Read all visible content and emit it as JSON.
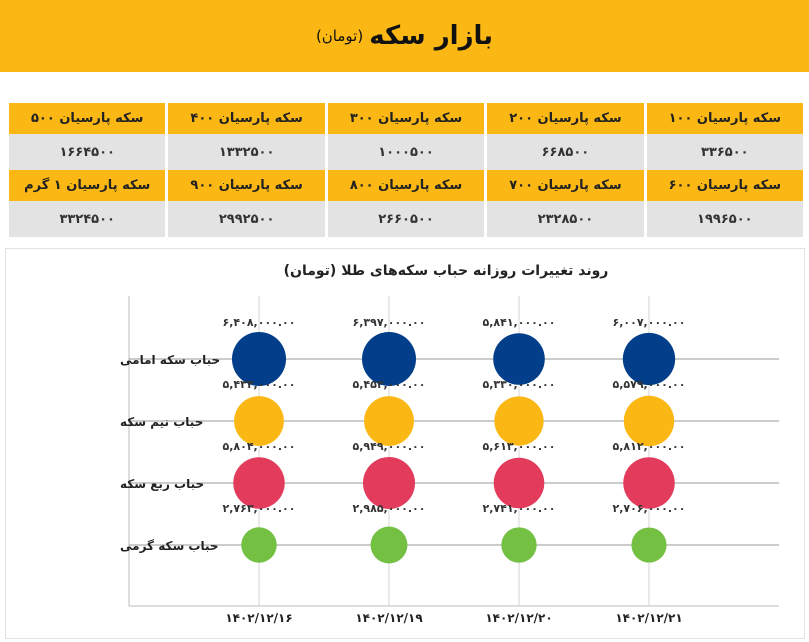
{
  "header": {
    "title": "بازار سکه",
    "unit": "(تومان)"
  },
  "table": {
    "rows": [
      [
        {
          "name": "سکه پارسیان ۱۰۰",
          "price": "۳۳۶۵۰۰"
        },
        {
          "name": "سکه پارسیان ۲۰۰",
          "price": "۶۶۸۵۰۰"
        },
        {
          "name": "سکه پارسیان ۳۰۰",
          "price": "۱۰۰۰۵۰۰"
        },
        {
          "name": "سکه پارسیان ۴۰۰",
          "price": "۱۳۳۲۵۰۰"
        },
        {
          "name": "سکه پارسیان ۵۰۰",
          "price": "۱۶۶۴۵۰۰"
        }
      ],
      [
        {
          "name": "سکه پارسیان ۶۰۰",
          "price": "۱۹۹۶۵۰۰"
        },
        {
          "name": "سکه پارسیان ۷۰۰",
          "price": "۲۳۲۸۵۰۰"
        },
        {
          "name": "سکه پارسیان ۸۰۰",
          "price": "۲۶۶۰۵۰۰"
        },
        {
          "name": "سکه پارسیان ۹۰۰",
          "price": "۲۹۹۲۵۰۰"
        },
        {
          "name": "سکه پارسیان ۱ گرم",
          "price": "۳۳۲۴۵۰۰"
        }
      ]
    ]
  },
  "chart_data": {
    "type": "bubble",
    "title": "روند تغییرات روزانه حباب سکه‌های طلا (تومان)",
    "categories": [
      "۱۴۰۲/۱۲/۱۶",
      "۱۴۰۲/۱۲/۱۹",
      "۱۴۰۲/۱۲/۲۰",
      "۱۴۰۲/۱۲/۲۱"
    ],
    "series": [
      {
        "name": "حباب سکه امامی",
        "color": "#023e8a",
        "values": [
          6408000,
          6397000,
          5841000,
          6007000
        ],
        "value_labels": [
          "۶,۴۰۸,۰۰۰.۰۰",
          "۶,۳۹۷,۰۰۰.۰۰",
          "۵,۸۴۱,۰۰۰.۰۰",
          "۶,۰۰۷,۰۰۰.۰۰"
        ]
      },
      {
        "name": "حباب نیم سکه",
        "color": "#fbb713",
        "values": [
          5433000,
          5453000,
          5330000,
          5579000
        ],
        "value_labels": [
          "۵,۴۳۳,۰۰۰.۰۰",
          "۵,۴۵۳,۰۰۰.۰۰",
          "۵,۳۳۰,۰۰۰.۰۰",
          "۵,۵۷۹,۰۰۰.۰۰"
        ]
      },
      {
        "name": "حباب ربع سکه",
        "color": "#e23b5c",
        "values": [
          5804000,
          5949000,
          5613000,
          5812000
        ],
        "value_labels": [
          "۵,۸۰۴,۰۰۰.۰۰",
          "۵,۹۴۹,۰۰۰.۰۰",
          "۵,۶۱۳,۰۰۰.۰۰",
          "۵,۸۱۲,۰۰۰.۰۰"
        ]
      },
      {
        "name": "حباب سکه گرمی",
        "color": "#73c043",
        "values": [
          2763000,
          2985000,
          2741000,
          2706000
        ],
        "value_labels": [
          "۲,۷۶۳,۰۰۰.۰۰",
          "۲,۹۸۵,۰۰۰.۰۰",
          "۲,۷۴۱,۰۰۰.۰۰",
          "۲,۷۰۶,۰۰۰.۰۰"
        ]
      }
    ]
  }
}
